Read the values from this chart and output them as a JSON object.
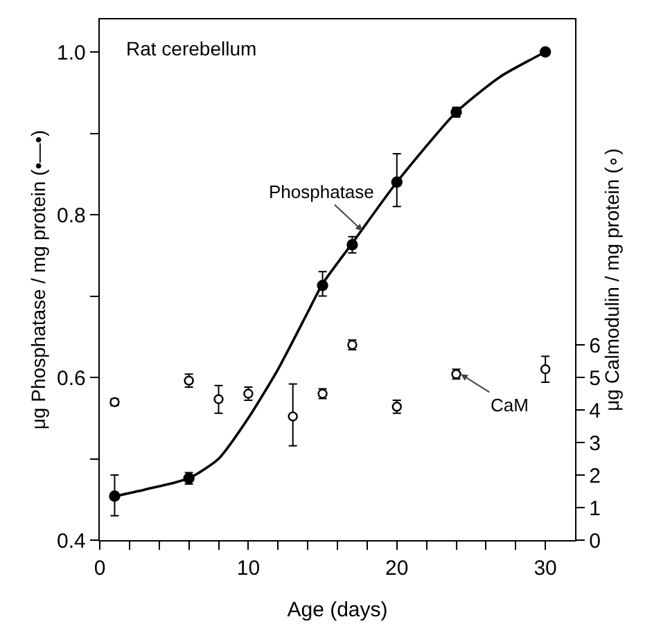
{
  "chart_data": {
    "type": "scatter",
    "xlabel": "Age (days)",
    "ylabel": "μg Phosphatase / mg protein (•—•)",
    "y2label": "μg Calmodulin / mg protein (∘)",
    "annotations": [
      "Rat cerebellum",
      {
        "text": "Phosphatase",
        "x": 17.7,
        "y": 0.78
      },
      {
        "text": "CaM",
        "x": 24.3,
        "y": 0.604
      }
    ],
    "series": [
      {
        "type": "line",
        "color": "#000000",
        "marker": "none",
        "x": [
          1,
          3,
          6,
          8,
          10,
          12,
          14,
          15,
          17,
          20,
          24,
          27,
          30
        ],
        "values": [
          0.454,
          0.462,
          0.476,
          0.5,
          0.55,
          0.61,
          0.68,
          0.715,
          0.765,
          0.84,
          0.926,
          0.97,
          1.0
        ]
      },
      {
        "color": "#000000",
        "marker": "circle",
        "x": [
          1,
          6,
          15,
          17,
          20,
          24,
          30
        ],
        "values": [
          0.454,
          0.476,
          0.713,
          0.763,
          0.84,
          0.926,
          1.0
        ],
        "errors": [
          [
            0.43,
            0.48
          ],
          0.007,
          [
            0.7,
            0.73
          ],
          0.01,
          [
            0.81,
            0.875
          ],
          0.006,
          0.003
        ]
      },
      {
        "color": "#000000",
        "axis": "y2",
        "x": [
          1,
          6,
          8,
          10,
          13,
          15,
          17,
          20,
          24,
          30
        ],
        "values": [
          4.24,
          4.9,
          4.33,
          4.5,
          3.8,
          4.5,
          6.0,
          4.1,
          5.1,
          5.25
        ],
        "errors": [
          0.1,
          0.2,
          [
            3.9,
            4.75
          ],
          0.2,
          [
            2.9,
            4.8
          ],
          0.15,
          0.15,
          0.2,
          0.15,
          [
            4.85,
            5.65
          ]
        ]
      }
    ],
    "xlim": [
      0,
      32
    ],
    "xticks": [
      0,
      {
        "value": 2,
        "label": null
      },
      {
        "value": 4,
        "label": null
      },
      {
        "value": 6,
        "label": null
      },
      {
        "value": 8,
        "label": null
      },
      10,
      {
        "value": 12,
        "label": null
      },
      {
        "value": 14,
        "label": null
      },
      {
        "value": 16,
        "label": null
      },
      {
        "value": 18,
        "label": null
      },
      20,
      {
        "value": 22,
        "label": null
      },
      {
        "value": 24,
        "label": null
      },
      {
        "value": 26,
        "label": null
      },
      {
        "value": 28,
        "label": null
      },
      30
    ],
    "ylim": [
      0.4,
      1.04
    ],
    "yticks": [
      {
        "value": 0.4,
        "label": "0.4"
      },
      {
        "value": 0.5,
        "label": null
      },
      {
        "value": 0.6,
        "label": "0.6"
      },
      {
        "value": 0.7,
        "label": null
      },
      {
        "value": 0.8,
        "label": "0.8"
      },
      {
        "value": 0.9,
        "label": null
      },
      {
        "value": 1.0,
        "label": "1.0"
      }
    ],
    "y2lim": [
      0,
      16
    ],
    "y2ticks": [
      0,
      1,
      2,
      3,
      4,
      5,
      6
    ],
    "grid": false
  }
}
